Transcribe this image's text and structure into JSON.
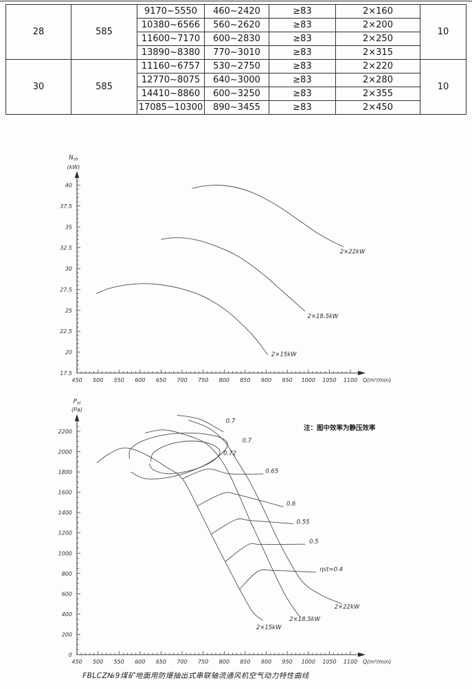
{
  "table": {
    "groups": [
      {
        "first": "28",
        "second": "585",
        "rows": [
          [
            "9170~5550",
            "460~2420",
            "≥83",
            "2×160"
          ],
          [
            "10380~6566",
            "560~2620",
            "≥83",
            "2×200"
          ],
          [
            "11600~7170",
            "600~2830",
            "≥83",
            "2×250"
          ],
          [
            "13890~8380",
            "770~3010",
            "≥83",
            "2×315"
          ]
        ],
        "last": "10"
      },
      {
        "first": "30",
        "second": "585",
        "rows": [
          [
            "11160~6757",
            "530~2750",
            "≥83",
            "2×220"
          ],
          [
            "12770~8075",
            "640~3000",
            "≥83",
            "2×280"
          ],
          [
            "14410~8860",
            "600~3250",
            "≥83",
            "2×355"
          ],
          [
            "17085~10300",
            "890~3455",
            "≥83",
            "2×450"
          ]
        ],
        "last": "10"
      }
    ]
  },
  "chart_data": [
    {
      "type": "line",
      "name": "shaft-power-curves",
      "title": "",
      "y_symbol": "N",
      "y_sub": "sh",
      "y_unit": "(kW)",
      "x_unit": "Q(m³/min)",
      "xlabel": "Q(m³/min)",
      "ylabel": "Nsh (kW)",
      "xlim": [
        450,
        1100
      ],
      "ylim": [
        17.5,
        40
      ],
      "x_ticks": [
        450,
        500,
        550,
        600,
        650,
        700,
        750,
        800,
        850,
        900,
        950,
        1000,
        1050,
        1100
      ],
      "y_ticks": [
        17.5,
        20,
        22.5,
        25,
        27.5,
        30,
        32.5,
        35,
        37.5,
        40
      ],
      "series": [
        {
          "name": "2×15kW",
          "label_at": [
            912,
            19.5
          ],
          "points": [
            [
              496,
              27.0
            ],
            [
              525,
              27.6
            ],
            [
              560,
              28.0
            ],
            [
              600,
              28.2
            ],
            [
              635,
              28.15
            ],
            [
              670,
              27.9
            ],
            [
              705,
              27.5
            ],
            [
              740,
              26.9
            ],
            [
              775,
              26.0
            ],
            [
              810,
              24.8
            ],
            [
              845,
              23.2
            ],
            [
              875,
              21.6
            ],
            [
              903,
              19.7
            ]
          ]
        },
        {
          "name": "2×18.5kW",
          "label_at": [
            998,
            24.1
          ],
          "points": [
            [
              650,
              33.5
            ],
            [
              678,
              33.7
            ],
            [
              708,
              33.65
            ],
            [
              745,
              33.3
            ],
            [
              785,
              32.6
            ],
            [
              825,
              31.7
            ],
            [
              865,
              30.4
            ],
            [
              905,
              28.8
            ],
            [
              945,
              27.0
            ],
            [
              992,
              24.9
            ]
          ]
        },
        {
          "name": "2×22kW",
          "label_at": [
            1075,
            31.8
          ],
          "points": [
            [
              723,
              39.6
            ],
            [
              753,
              39.9
            ],
            [
              788,
              40.0
            ],
            [
              825,
              39.75
            ],
            [
              862,
              39.2
            ],
            [
              900,
              38.3
            ],
            [
              940,
              37.1
            ],
            [
              980,
              35.7
            ],
            [
              1020,
              34.3
            ],
            [
              1055,
              33.3
            ],
            [
              1084,
              32.6
            ]
          ]
        }
      ]
    },
    {
      "type": "line",
      "name": "static-pressure-curves",
      "title": "",
      "y_symbol": "P",
      "y_sub": "st",
      "y_unit": "(Pa)",
      "x_unit": "Q(m³/min)",
      "xlabel": "Q(m³/min)",
      "ylabel": "Pst (Pa)",
      "note": "注：图中效率为静压效率",
      "xlim": [
        450,
        1100
      ],
      "ylim": [
        0,
        2200
      ],
      "x_ticks": [
        450,
        500,
        550,
        600,
        650,
        700,
        750,
        800,
        850,
        900,
        950,
        1000,
        1050,
        1100
      ],
      "y_ticks": [
        0,
        200,
        400,
        600,
        800,
        1000,
        1200,
        1400,
        1600,
        1800,
        2000,
        2200
      ],
      "series": [
        {
          "name": "2×15kW",
          "label_at": [
            876,
            250
          ],
          "points": [
            [
              497,
              1890
            ],
            [
              525,
              1975
            ],
            [
              558,
              2035
            ],
            [
              590,
              2015
            ],
            [
              625,
              1945
            ],
            [
              662,
              1850
            ],
            [
              700,
              1735
            ],
            [
              735,
              1470
            ],
            [
              768,
              1195
            ],
            [
              802,
              920
            ],
            [
              836,
              650
            ],
            [
              868,
              420
            ],
            [
              892,
              338
            ]
          ]
        },
        {
          "name": "2×18.5kW",
          "label_at": [
            955,
            330
          ],
          "points": [
            [
              612,
              2185
            ],
            [
              655,
              2215
            ],
            [
              700,
              2175
            ],
            [
              755,
              2085
            ],
            [
              790,
              1935
            ],
            [
              812,
              1780
            ],
            [
              835,
              1575
            ],
            [
              861,
              1325
            ],
            [
              888,
              1085
            ],
            [
              916,
              832
            ],
            [
              948,
              565
            ],
            [
              982,
              360
            ]
          ]
        },
        {
          "name": "2×22kW",
          "label_at": [
            1062,
            455
          ],
          "points": [
            [
              715,
              2310
            ],
            [
              762,
              2235
            ],
            [
              801,
              2100
            ],
            [
              827,
              1935
            ],
            [
              860,
              1710
            ],
            [
              893,
              1440
            ],
            [
              921,
              1190
            ],
            [
              949,
              965
            ],
            [
              987,
              715
            ],
            [
              1032,
              585
            ],
            [
              1080,
              500
            ]
          ]
        }
      ],
      "contours": [
        {
          "label": "0.7",
          "label_at": [
            804,
            2285
          ],
          "points": [
            [
              688,
              2360
            ],
            [
              742,
              2320
            ],
            [
              798,
              2195
            ]
          ]
        },
        {
          "label": "0.7",
          "label_at": [
            843,
            2093
          ],
          "points": [
            [
              575,
              1930
            ],
            [
              578,
              2030
            ],
            [
              615,
              2120
            ],
            [
              675,
              2175
            ],
            [
              740,
              2180
            ],
            [
              790,
              2140
            ],
            [
              808,
              2070
            ],
            [
              788,
              1960
            ],
            [
              740,
              1840
            ],
            [
              672,
              1750
            ],
            [
              612,
              1735
            ],
            [
              578,
              1800
            ]
          ]
        },
        {
          "label": "0.72",
          "label_at": [
            798,
            1965
          ],
          "points": [
            [
              625,
              1900
            ],
            [
              632,
              1990
            ],
            [
              668,
              2070
            ],
            [
              722,
              2105
            ],
            [
              768,
              2075
            ],
            [
              790,
              2000
            ],
            [
              772,
              1905
            ],
            [
              725,
              1820
            ],
            [
              668,
              1782
            ],
            [
              632,
              1820
            ],
            [
              622,
              1880
            ]
          ]
        },
        {
          "label": "0.65",
          "label_at": [
            898,
            1790
          ],
          "points": [
            [
              700,
              1732
            ],
            [
              760,
              1828
            ],
            [
              812,
              1782
            ],
            [
              893,
              1780
            ]
          ]
        },
        {
          "label": "0.6",
          "label_at": [
            948,
            1468
          ],
          "points": [
            [
              736,
              1465
            ],
            [
              798,
              1590
            ],
            [
              836,
              1572
            ],
            [
              941,
              1456
            ]
          ]
        },
        {
          "label": "0.55",
          "label_at": [
            972,
            1290
          ],
          "points": [
            [
              770,
              1190
            ],
            [
              828,
              1330
            ],
            [
              862,
              1322
            ],
            [
              964,
              1290
            ]
          ]
        },
        {
          "label": "0.5",
          "label_at": [
            1002,
            1096
          ],
          "points": [
            [
              803,
              918
            ],
            [
              856,
              1082
            ],
            [
              890,
              1085
            ],
            [
              993,
              1088
            ]
          ]
        },
        {
          "label": "ηst=0.4",
          "label_at": [
            1027,
            822
          ],
          "points": [
            [
              837,
              648
            ],
            [
              880,
              820
            ],
            [
              918,
              830
            ],
            [
              1018,
              812
            ]
          ]
        }
      ]
    }
  ],
  "caption": "FBLCZ№9煤矿地面用防爆抽出式串联轴流通风机空气动力特性曲线"
}
